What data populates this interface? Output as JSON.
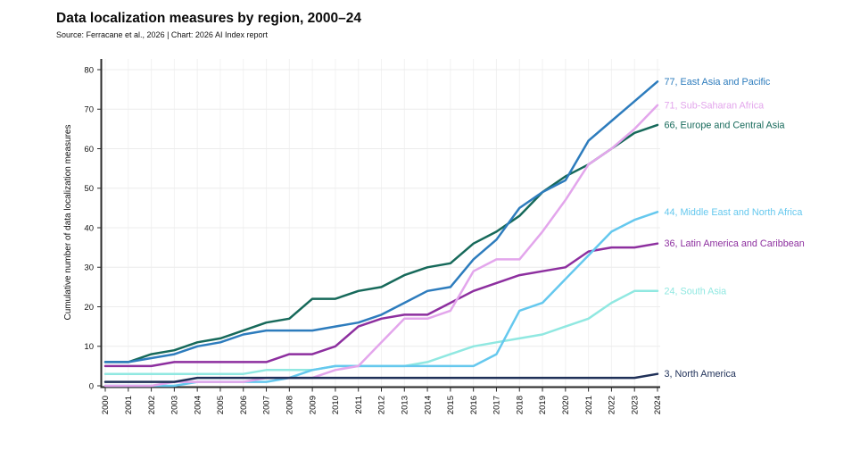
{
  "header": {
    "title": "Data localization measures by region, 2000–24",
    "source": "Source: Ferracane et al., 2026 | Chart: 2026 AI Index report"
  },
  "chart_data": {
    "type": "line",
    "title": "Data localization measures by region, 2000–24",
    "subtitle": "Source: Ferracane et al., 2026 | Chart: 2026 AI Index report",
    "xlabel": "",
    "ylabel": "Cumulative number of data localization measures",
    "ylim": [
      0,
      80
    ],
    "ytick_step": 10,
    "yticks": [
      0,
      10,
      20,
      30,
      40,
      50,
      60,
      70,
      80
    ],
    "grid": true,
    "legend_position": "right-end-labels",
    "axis_color": "#2b2b2b",
    "grid_color": "#ececec",
    "x": [
      2000,
      2001,
      2002,
      2003,
      2004,
      2005,
      2006,
      2007,
      2008,
      2009,
      2010,
      2011,
      2012,
      2013,
      2014,
      2015,
      2016,
      2017,
      2018,
      2019,
      2020,
      2021,
      2022,
      2023,
      2024
    ],
    "series": [
      {
        "name": "East Asia and Pacific",
        "color": "#2d7cbd",
        "end_value": 77,
        "end_label": "77, East Asia and Pacific",
        "values": [
          6,
          6,
          7,
          8,
          10,
          11,
          13,
          14,
          14,
          14,
          15,
          16,
          18,
          21,
          24,
          25,
          32,
          37,
          45,
          49,
          52,
          62,
          67,
          72,
          77
        ]
      },
      {
        "name": "Sub-Saharan Africa",
        "color": "#e3a6ec",
        "end_value": 71,
        "end_label": "71, Sub-Saharan Africa",
        "values": [
          0,
          0,
          0,
          1,
          1,
          1,
          1,
          2,
          2,
          2,
          4,
          5,
          11,
          17,
          17,
          19,
          29,
          32,
          32,
          39,
          47,
          56,
          60,
          65,
          71
        ]
      },
      {
        "name": "Europe and Central Asia",
        "color": "#16695a",
        "end_value": 66,
        "end_label": "66, Europe and Central Asia",
        "values": [
          6,
          6,
          8,
          9,
          11,
          12,
          14,
          16,
          17,
          22,
          22,
          24,
          25,
          28,
          30,
          31,
          36,
          39,
          43,
          49,
          53,
          56,
          60,
          64,
          66
        ]
      },
      {
        "name": "Middle East and North Africa",
        "color": "#65c8ee",
        "end_value": 44,
        "end_label": "44, Middle East and North Africa",
        "values": [
          0,
          0,
          0,
          0,
          1,
          1,
          1,
          1,
          2,
          4,
          5,
          5,
          5,
          5,
          5,
          5,
          5,
          8,
          19,
          21,
          27,
          33,
          39,
          42,
          44
        ]
      },
      {
        "name": "Latin America and Caribbean",
        "color": "#8d2f9f",
        "end_value": 36,
        "end_label": "36, Latin America and Caribbean",
        "values": [
          5,
          5,
          5,
          6,
          6,
          6,
          6,
          6,
          8,
          8,
          10,
          15,
          17,
          18,
          18,
          21,
          24,
          26,
          28,
          29,
          30,
          34,
          35,
          35,
          36
        ]
      },
      {
        "name": "South Asia",
        "color": "#90e8e1",
        "end_value": 24,
        "end_label": "24, South Asia",
        "values": [
          3,
          3,
          3,
          3,
          3,
          3,
          3,
          4,
          4,
          4,
          5,
          5,
          5,
          5,
          6,
          8,
          10,
          11,
          12,
          13,
          15,
          17,
          21,
          24,
          24
        ]
      },
      {
        "name": "North America",
        "color": "#1f3058",
        "end_value": 3,
        "end_label": "3, North America",
        "values": [
          1,
          1,
          1,
          1,
          2,
          2,
          2,
          2,
          2,
          2,
          2,
          2,
          2,
          2,
          2,
          2,
          2,
          2,
          2,
          2,
          2,
          2,
          2,
          2,
          3
        ]
      }
    ]
  }
}
